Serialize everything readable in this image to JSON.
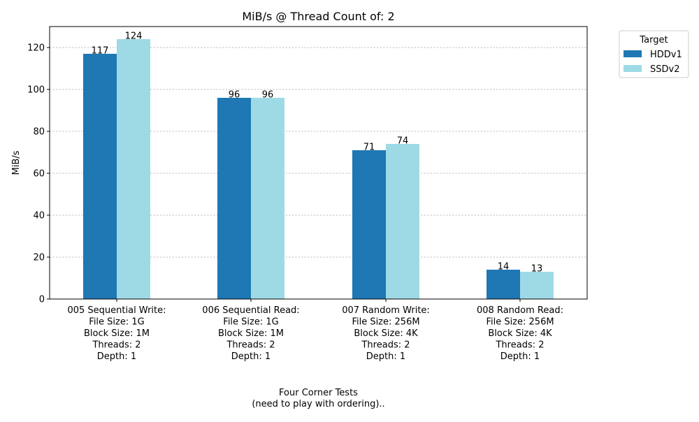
{
  "chart_data": {
    "type": "bar",
    "title": "MiB/s @ Thread Count of: 2",
    "ylabel": "MiB/s",
    "xlabel_lines": [
      "Four Corner Tests",
      "(need to play with ordering).."
    ],
    "ylim": [
      0,
      130
    ],
    "yticks": [
      0,
      20,
      40,
      60,
      80,
      100,
      120
    ],
    "grid": "y-dashed",
    "legend": {
      "title": "Target",
      "placement": "outside-top-right"
    },
    "categories": [
      {
        "lines": [
          "005 Sequential Write:",
          "File Size: 1G",
          "Block Size: 1M",
          "Threads: 2",
          "Depth: 1"
        ]
      },
      {
        "lines": [
          "006 Sequential Read:",
          "File Size: 1G",
          "Block Size: 1M",
          "Threads: 2",
          "Depth: 1"
        ]
      },
      {
        "lines": [
          "007 Random Write:",
          "File Size: 256M",
          "Block Size: 4K",
          "Threads: 2",
          "Depth: 1"
        ]
      },
      {
        "lines": [
          "008 Random Read:",
          "File Size: 256M",
          "Block Size: 4K",
          "Threads: 2",
          "Depth: 1"
        ]
      }
    ],
    "series": [
      {
        "name": "HDDv1",
        "color": "#1f77b4",
        "values": [
          117,
          96,
          71,
          14
        ]
      },
      {
        "name": "SSDv2",
        "color": "#9edae5",
        "values": [
          124,
          96,
          74,
          13
        ]
      }
    ]
  }
}
